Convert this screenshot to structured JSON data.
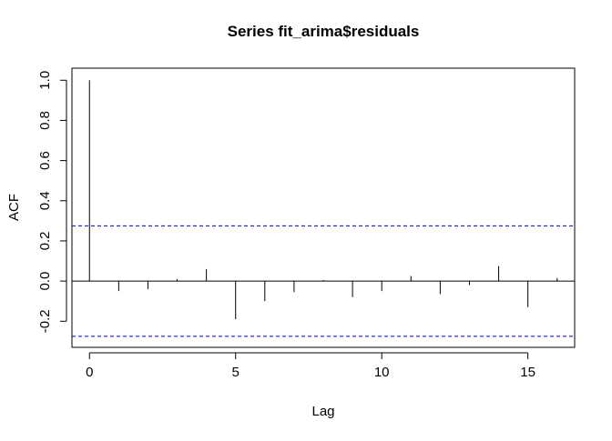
{
  "chart_data": {
    "type": "bar",
    "title": "Series  fit_arima$residuals",
    "xlabel": "Lag",
    "ylabel": "ACF",
    "xlim": [
      -0.6,
      16.6
    ],
    "ylim": [
      -0.33,
      1.06
    ],
    "x_ticks": [
      0,
      5,
      10,
      15
    ],
    "x_tick_labels": [
      "0",
      "5",
      "10",
      "15"
    ],
    "y_ticks": [
      -0.2,
      0.0,
      0.2,
      0.4,
      0.6,
      0.8,
      1.0
    ],
    "y_tick_labels": [
      "-0.2",
      "0.0",
      "0.2",
      "0.4",
      "0.6",
      "0.8",
      "1.0"
    ],
    "grid": false,
    "series": [
      {
        "lags": [
          0,
          1,
          2,
          3,
          4,
          5,
          6,
          7,
          8,
          9,
          10,
          11,
          12,
          13,
          14,
          15,
          16
        ],
        "values": [
          1.0,
          -0.05,
          -0.04,
          0.01,
          0.06,
          -0.19,
          -0.1,
          -0.055,
          0.005,
          -0.08,
          -0.05,
          0.025,
          -0.065,
          -0.02,
          0.075,
          -0.13,
          0.015
        ]
      }
    ],
    "confidence_bounds": [
      0.275,
      -0.275
    ],
    "colors": {
      "bars": "#000000",
      "zero_line": "#000000",
      "confidence_line": "#0000CC"
    }
  }
}
